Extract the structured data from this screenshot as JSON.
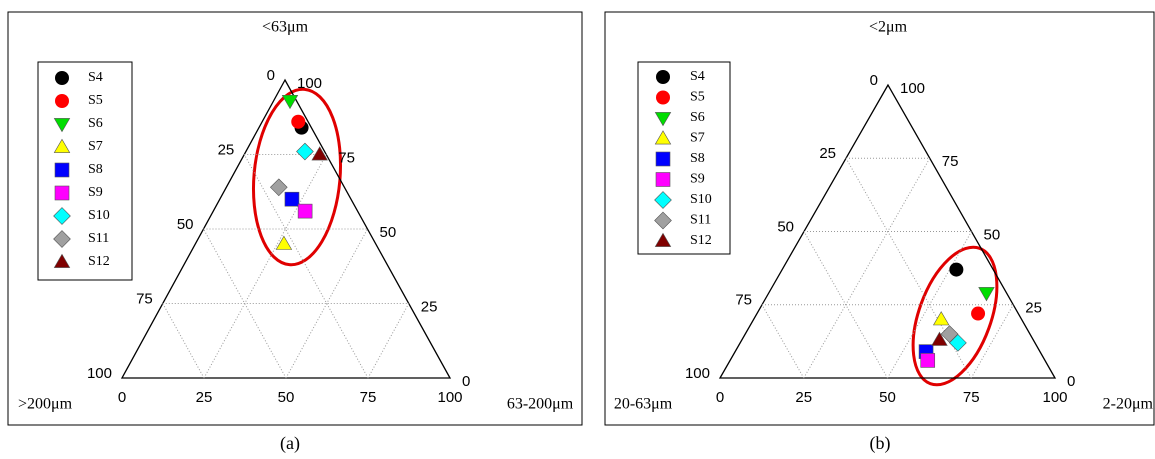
{
  "chart_data": [
    {
      "type": "ternary",
      "panel_label": "(a)",
      "corner_labels": {
        "top": "<63μm",
        "left": ">200μm",
        "right": "63-200μm"
      },
      "ticks": [
        0,
        25,
        50,
        75,
        100
      ],
      "grid": true,
      "legend": "upper left",
      "series": [
        {
          "name": "S4",
          "color": "#000000",
          "marker": "circle",
          "values": [
            84,
            3,
            13
          ]
        },
        {
          "name": "S5",
          "color": "#ff0000",
          "marker": "circle",
          "values": [
            86,
            3,
            11
          ]
        },
        {
          "name": "S6",
          "color": "#00dd00",
          "marker": "triangle-down",
          "values": [
            93,
            2,
            5
          ]
        },
        {
          "name": "S7",
          "color": "#ffff00",
          "marker": "triangle-up",
          "values": [
            45,
            28,
            27
          ]
        },
        {
          "name": "S8",
          "color": "#0000ff",
          "marker": "square",
          "values": [
            60,
            18,
            22
          ]
        },
        {
          "name": "S9",
          "color": "#ff00ff",
          "marker": "square",
          "values": [
            56,
            16,
            28
          ]
        },
        {
          "name": "S10",
          "color": "#00ffff",
          "marker": "diamond",
          "values": [
            76,
            6,
            18
          ]
        },
        {
          "name": "S11",
          "color": "#a0a0a0",
          "marker": "diamond",
          "values": [
            64,
            20,
            16
          ]
        },
        {
          "name": "S12",
          "color": "#800000",
          "marker": "triangle-up",
          "values": [
            75,
            2,
            23
          ]
        }
      ]
    },
    {
      "type": "ternary",
      "panel_label": "(b)",
      "corner_labels": {
        "top": "<2μm",
        "left": "20-63μm",
        "right": "2-20μm"
      },
      "ticks": [
        0,
        25,
        50,
        75,
        100
      ],
      "grid": true,
      "legend": "upper left",
      "series": [
        {
          "name": "S4",
          "color": "#000000",
          "marker": "circle",
          "values": [
            37,
            11,
            52
          ]
        },
        {
          "name": "S5",
          "color": "#ff0000",
          "marker": "circle",
          "values": [
            22,
            12,
            66
          ]
        },
        {
          "name": "S6",
          "color": "#00dd00",
          "marker": "triangle-down",
          "values": [
            29,
            6,
            65
          ]
        },
        {
          "name": "S7",
          "color": "#ffff00",
          "marker": "triangle-up",
          "values": [
            20,
            24,
            56
          ]
        },
        {
          "name": "S8",
          "color": "#0000ff",
          "marker": "square",
          "values": [
            9,
            34,
            57
          ]
        },
        {
          "name": "S9",
          "color": "#ff00ff",
          "marker": "square",
          "values": [
            6,
            35,
            59
          ]
        },
        {
          "name": "S10",
          "color": "#00ffff",
          "marker": "diamond",
          "values": [
            12,
            23,
            65
          ]
        },
        {
          "name": "S11",
          "color": "#a0a0a0",
          "marker": "diamond",
          "values": [
            15,
            24,
            61
          ]
        },
        {
          "name": "S12",
          "color": "#800000",
          "marker": "triangle-up",
          "values": [
            13,
            28,
            59
          ]
        }
      ]
    }
  ]
}
